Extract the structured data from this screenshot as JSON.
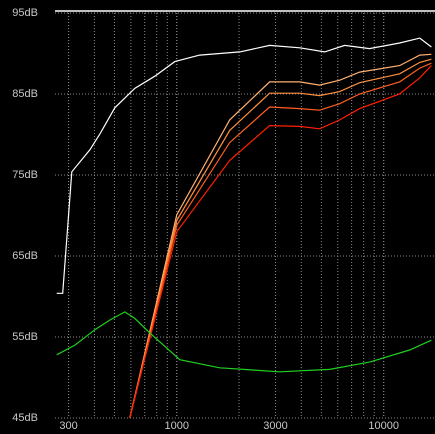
{
  "chart_data": {
    "type": "line",
    "xscale": "log",
    "grid": true,
    "xlim": [
      258,
      17700
    ],
    "xticks": [
      300,
      1000,
      3000,
      10000
    ],
    "ylim": [
      45,
      95
    ],
    "yticks": [
      {
        "value": 45,
        "label": "45dB"
      },
      {
        "value": 55,
        "label": "55dB"
      },
      {
        "value": 65,
        "label": "65dB"
      },
      {
        "value": 75,
        "label": "75dB"
      },
      {
        "value": 85,
        "label": "85dB"
      },
      {
        "value": 95,
        "label": "95dB"
      }
    ],
    "series": [
      {
        "color": "#ffffff",
        "x": [
          263,
          281,
          311,
          380,
          424,
          502,
          627,
          783,
          978,
          1291,
          2016,
          2810,
          3927,
          5190,
          6470,
          8540,
          11940,
          14940,
          17000
        ],
        "values": [
          60.4,
          60.4,
          75.4,
          78.1,
          80,
          83.3,
          85.7,
          87.2,
          89,
          89.8,
          90.2,
          91,
          90.7,
          90.2,
          91,
          90.6,
          91.3,
          91.9,
          90.8
        ]
      },
      {
        "color": "#ffb070",
        "x": [
          593,
          1000,
          1803,
          2810,
          3927,
          4900,
          6130,
          7650,
          11940,
          14940,
          17000
        ],
        "values": [
          45,
          70.1,
          81.8,
          86.5,
          86.5,
          86.1,
          86.7,
          87.7,
          88.5,
          89.8,
          89.9
        ]
      },
      {
        "color": "#ff9040",
        "x": [
          593,
          1000,
          1803,
          2810,
          3927,
          4900,
          6130,
          7650,
          11940,
          14940,
          17000
        ],
        "values": [
          45,
          69.4,
          80.5,
          85.1,
          85.1,
          84.8,
          85.3,
          86.4,
          87.5,
          88.9,
          89.3
        ]
      },
      {
        "color": "#ff6020",
        "x": [
          593,
          1000,
          1803,
          2810,
          3927,
          4900,
          6130,
          7650,
          11940,
          14940,
          17000
        ],
        "values": [
          45,
          68.8,
          79,
          83.4,
          83.2,
          83,
          83.8,
          85,
          86.5,
          88.2,
          88.8
        ]
      },
      {
        "color": "#ff2000",
        "x": [
          593,
          1000,
          1803,
          2810,
          3927,
          4900,
          6130,
          7650,
          11940,
          14940,
          17000
        ],
        "values": [
          45,
          68,
          76.8,
          81.1,
          81,
          80.7,
          81.8,
          83.2,
          85,
          87,
          88.5
        ]
      },
      {
        "color": "#20d020",
        "x": [
          263,
          322,
          402,
          475,
          561,
          627,
          741,
          1034,
          1613,
          3142,
          5490,
          8540,
          13340,
          17000
        ],
        "values": [
          52.8,
          54,
          55.9,
          57.1,
          58.1,
          57.3,
          55.5,
          52.2,
          51.2,
          50.7,
          51,
          51.9,
          53.4,
          54.6
        ]
      }
    ]
  }
}
